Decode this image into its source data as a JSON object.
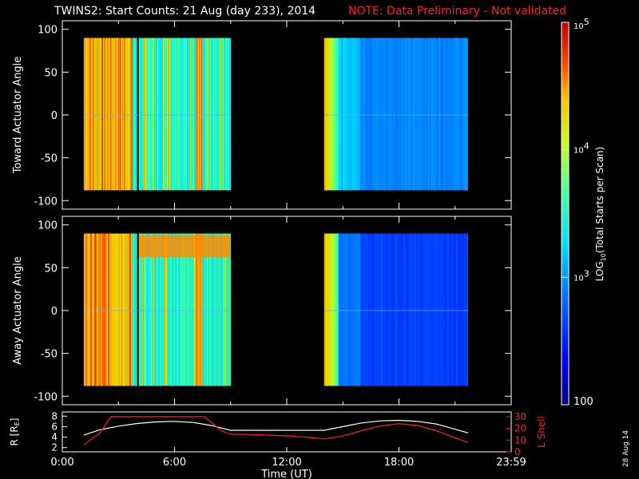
{
  "title": {
    "main": "TWINS2: Start Counts: 21 Aug (day 233), 2014",
    "note": "NOTE: Data Preliminary - Not validated"
  },
  "datestamp": "28 Aug 14",
  "colors": {
    "background": "#000000",
    "axis": "#ffffff",
    "note": "#ff2222",
    "lshell": "#ff2020",
    "radius": "#ffffff"
  },
  "chart_data": [
    {
      "type": "heatmap",
      "panel": "toward",
      "ylabel": "Toward Actuator Angle",
      "ylim": [
        -110,
        110
      ],
      "yticks": [
        "100",
        "50",
        "0",
        "-50",
        "-100"
      ],
      "xlim_hours": [
        0,
        24
      ],
      "data_blocks_hours": [
        [
          1.15,
          9.0
        ],
        [
          14.0,
          21.7
        ]
      ],
      "data_angle_range": [
        -88,
        90
      ],
      "scale": "log",
      "zlim": [
        100,
        100000
      ]
    },
    {
      "type": "heatmap",
      "panel": "away",
      "ylabel": "Away Actuator Angle",
      "ylim": [
        -110,
        110
      ],
      "yticks": [
        "100",
        "50",
        "0",
        "-50",
        "-100"
      ],
      "xlim_hours": [
        0,
        24
      ],
      "data_blocks_hours": [
        [
          1.15,
          9.0
        ],
        [
          14.0,
          21.7
        ]
      ],
      "data_angle_range": [
        -88,
        90
      ],
      "scale": "log",
      "zlim": [
        100,
        100000
      ]
    },
    {
      "type": "line",
      "panel": "orbit",
      "ylabel_left": "R [R",
      "ylabel_left_sub": "E",
      "ylabel_left_end": "]",
      "ylabel_right": "L Shell",
      "yticks_left": [
        "8",
        "6",
        "4",
        "2"
      ],
      "yticks_right": [
        "30",
        "20",
        "10",
        "0"
      ],
      "xlabel": "Time (UT)",
      "xticks": [
        "0:00",
        "6:00",
        "12:00",
        "18:00",
        "23:59"
      ],
      "xticks_hours": [
        0,
        6,
        12,
        18,
        24
      ],
      "series": [
        {
          "color": "#ffffff",
          "x": [
            1.15,
            2,
            3,
            4,
            5,
            6,
            7,
            8,
            9,
            10,
            11,
            12,
            13,
            14,
            15,
            16,
            17,
            18,
            19,
            20,
            21,
            21.7
          ],
          "y": [
            4.4,
            5.4,
            6.1,
            6.6,
            6.9,
            7.0,
            6.8,
            6.2,
            5.3,
            5.3,
            5.3,
            5.3,
            5.3,
            5.3,
            6.0,
            6.7,
            7.1,
            7.2,
            7.0,
            6.5,
            5.5,
            4.8
          ]
        },
        {
          "color": "#ff2020",
          "x": [
            1.15,
            2,
            2.6,
            7.6,
            8.5,
            9,
            10,
            11,
            12,
            13,
            14,
            15,
            16,
            17,
            18,
            19,
            20,
            21,
            21.7
          ],
          "y": [
            6.0,
            16.0,
            30.0,
            30.0,
            18.0,
            15.0,
            14.8,
            14.3,
            13.6,
            12.5,
            11.0,
            13.5,
            18.0,
            22.0,
            24.0,
            22.5,
            18.0,
            12.0,
            8.0
          ]
        }
      ]
    }
  ],
  "colorbar": {
    "label": "LOG",
    "label_sub": "10",
    "label_rest": "(Total Starts per Scan)",
    "ticks": [
      {
        "base": "10",
        "exp": "5",
        "frac": 1.0
      },
      {
        "base": "10",
        "exp": "4",
        "frac": 0.6667
      },
      {
        "base": "10",
        "exp": "3",
        "frac": 0.3333
      },
      {
        "base": "100",
        "exp": "",
        "frac": 0.0
      }
    ]
  }
}
